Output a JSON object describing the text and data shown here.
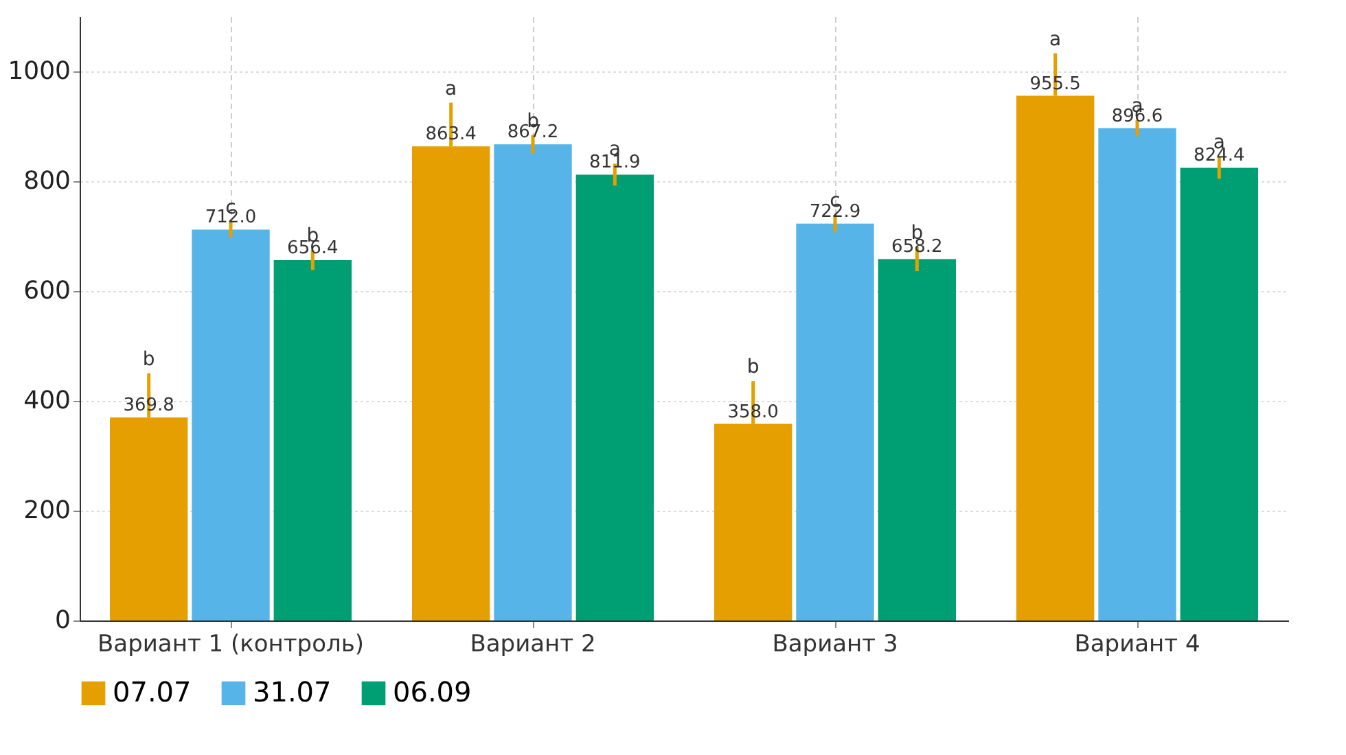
{
  "chart_data": {
    "type": "bar",
    "categories": [
      "Вариант 1 (контроль)",
      "Вариант 2",
      "Вариант 3",
      "Вариант 4"
    ],
    "series": [
      {
        "name": "07.07",
        "color": "#e69f00",
        "values": [
          369.8,
          863.4,
          358.0,
          955.5
        ],
        "value_labels": [
          "369.8",
          "863.4",
          "358.0",
          "955.5"
        ],
        "errors": [
          [
            369.8,
            450
          ],
          [
            863.4,
            943
          ],
          [
            358.0,
            436
          ],
          [
            955.5,
            1033
          ]
        ]
      },
      {
        "name": "31.07",
        "color": "#56b4e9",
        "values": [
          712.0,
          867.2,
          722.9,
          896.6
        ],
        "value_labels": [
          "712.0",
          "867.2",
          "722.9",
          "896.6"
        ],
        "errors": [
          14,
          17,
          16,
          15
        ]
      },
      {
        "name": "06.09",
        "color": "#009e73",
        "values": [
          656.4,
          811.9,
          658.2,
          824.4
        ],
        "value_labels": [
          "656.4",
          "811.9",
          "658.2",
          "824.4"
        ],
        "errors": [
          18,
          20,
          22,
          20
        ]
      }
    ],
    "annotations": [
      "b",
      "c",
      "b",
      "a",
      "b",
      "a",
      "b",
      "c",
      "b",
      "a",
      "a",
      "a"
    ],
    "ylim": [
      0,
      1100
    ],
    "yticks": [
      0,
      200,
      400,
      600,
      800,
      1000
    ],
    "grid": true,
    "legend": "bottom"
  }
}
